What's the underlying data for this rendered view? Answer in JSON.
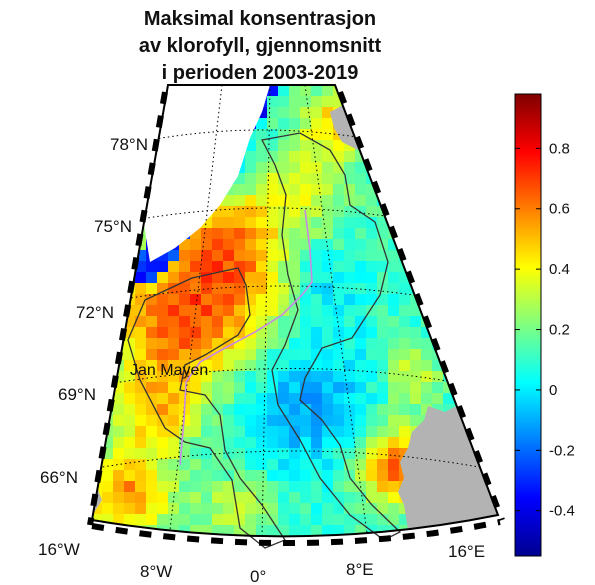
{
  "title": {
    "line1": "Maksimal konsentrasjon",
    "line2": "av klorofyll, gjennomsnitt",
    "line3": "i perioden 2003-2019"
  },
  "map": {
    "lat_labels": [
      "78°N",
      "75°N",
      "72°N",
      "69°N",
      "66°N"
    ],
    "lon_labels": [
      "16°W",
      "8°W",
      "0°",
      "8°E",
      "16°E"
    ],
    "place_label": "Jan Mayen",
    "land_color": "#b3b3b3",
    "boundary_color": "#333333",
    "track_color": "#c88ae8",
    "lat_range": [
      64,
      80
    ],
    "lon_range": [
      -16,
      16
    ]
  },
  "colorbar": {
    "tick_labels": [
      "0.8",
      "0.6",
      "0.4",
      "0.2",
      "0",
      "-0.2",
      "-0.4"
    ],
    "ticks": [
      0.8,
      0.6,
      0.4,
      0.2,
      0,
      -0.2,
      -0.4
    ],
    "range": [
      -0.55,
      0.98
    ],
    "colormap": "jet"
  }
}
